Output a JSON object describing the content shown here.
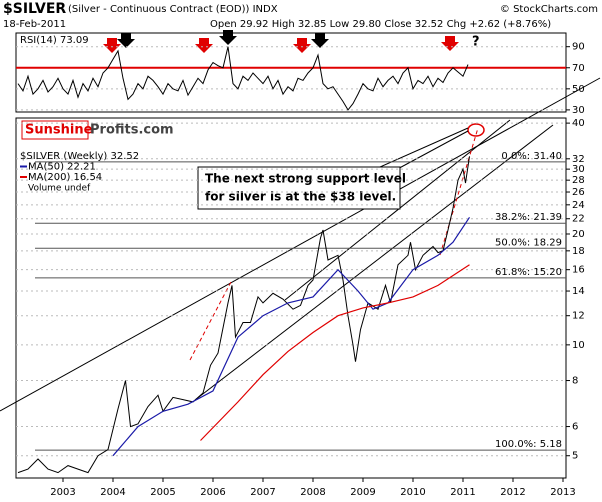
{
  "chart_data": [
    {
      "type": "line",
      "title": "RSI(14) 73.09",
      "ylim": [
        28,
        103
      ],
      "yticks": [
        90,
        70,
        50,
        30
      ],
      "reference_line": 70,
      "reference_color": "#e00000",
      "xlim": [
        2002.06,
        2013.06
      ],
      "series": [
        {
          "name": "RSI(14)",
          "color": "#000000",
          "x": [
            2002.1,
            2002.2,
            2002.3,
            2002.4,
            2002.5,
            2002.6,
            2002.7,
            2002.8,
            2002.9,
            2003.0,
            2003.1,
            2003.2,
            2003.3,
            2003.4,
            2003.5,
            2003.6,
            2003.7,
            2003.8,
            2003.9,
            2004.0,
            2004.1,
            2004.2,
            2004.3,
            2004.4,
            2004.5,
            2004.6,
            2004.7,
            2004.8,
            2004.9,
            2005.0,
            2005.1,
            2005.2,
            2005.3,
            2005.4,
            2005.5,
            2005.6,
            2005.7,
            2005.8,
            2005.9,
            2006.0,
            2006.1,
            2006.2,
            2006.3,
            2006.4,
            2006.5,
            2006.6,
            2006.7,
            2006.8,
            2006.9,
            2007.0,
            2007.1,
            2007.2,
            2007.3,
            2007.4,
            2007.5,
            2007.6,
            2007.7,
            2007.8,
            2007.9,
            2008.0,
            2008.1,
            2008.2,
            2008.3,
            2008.4,
            2008.5,
            2008.6,
            2008.7,
            2008.8,
            2008.9,
            2009.0,
            2009.1,
            2009.2,
            2009.3,
            2009.4,
            2009.5,
            2009.6,
            2009.7,
            2009.8,
            2009.9,
            2010.0,
            2010.1,
            2010.2,
            2010.3,
            2010.4,
            2010.5,
            2010.6,
            2010.7,
            2010.8,
            2010.9,
            2011.0,
            2011.1
          ],
          "values": [
            55,
            48,
            62,
            45,
            50,
            58,
            47,
            52,
            60,
            50,
            45,
            58,
            42,
            55,
            48,
            60,
            52,
            65,
            70,
            78,
            86,
            60,
            40,
            45,
            55,
            50,
            62,
            58,
            52,
            45,
            55,
            50,
            48,
            58,
            44,
            52,
            60,
            55,
            68,
            75,
            72,
            70,
            90,
            55,
            50,
            62,
            58,
            65,
            60,
            55,
            62,
            50,
            58,
            45,
            52,
            48,
            60,
            58,
            65,
            70,
            82,
            55,
            50,
            52,
            45,
            38,
            30,
            36,
            45,
            55,
            50,
            48,
            60,
            52,
            58,
            62,
            55,
            65,
            70,
            50,
            58,
            55,
            62,
            52,
            60,
            56,
            65,
            70,
            66,
            62,
            73
          ]
        }
      ],
      "annotation": "?"
    },
    {
      "type": "line",
      "log_scale": true,
      "title": "$SILVER",
      "subtitle": "(Silver - Continuous Contract (EOD)) INDX",
      "date": "18-Feb-2011",
      "quote": "Open 29.92 High 32.85 Low 29.80 Close 32.52 Chg +2.62 (+8.76%)",
      "source": "© StockCharts.com",
      "logo": [
        "Sunshine",
        "Profits.com"
      ],
      "callout": [
        "The next strong support level",
        "for silver is at the $38 level."
      ],
      "volume_label": "Volume undef",
      "xlim": [
        2002.06,
        2013.06
      ],
      "xticks": [
        2003,
        2004,
        2005,
        2006,
        2007,
        2008,
        2009,
        2010,
        2011,
        2012,
        2013
      ],
      "ylim": [
        4.35,
        41.3
      ],
      "yticks": [
        40,
        32,
        30,
        28,
        26,
        24,
        22,
        20,
        18,
        16,
        14,
        12,
        10,
        8,
        6,
        5
      ],
      "levels": [
        {
          "value": 31.4,
          "label": "0.0%: 31.40"
        },
        {
          "value": 21.39,
          "label": "38.2%: 21.39"
        },
        {
          "value": 18.29,
          "label": "50.0%: 18.29"
        },
        {
          "value": 15.2,
          "label": "61.8%: 15.20"
        },
        {
          "value": 5.18,
          "label": "100.0%: 5.18"
        }
      ],
      "series": [
        {
          "name": "$SILVER (Weekly) 32.52",
          "color": "#000000",
          "x": [
            2002.1,
            2002.3,
            2002.5,
            2002.7,
            2002.9,
            2003.1,
            2003.3,
            2003.5,
            2003.7,
            2003.9,
            2004.0,
            2004.1,
            2004.25,
            2004.35,
            2004.5,
            2004.7,
            2004.9,
            2005.0,
            2005.2,
            2005.4,
            2005.6,
            2005.8,
            2005.95,
            2006.1,
            2006.3,
            2006.38,
            2006.45,
            2006.6,
            2006.75,
            2006.9,
            2007.0,
            2007.2,
            2007.4,
            2007.6,
            2007.75,
            2007.9,
            2008.0,
            2008.15,
            2008.2,
            2008.3,
            2008.5,
            2008.6,
            2008.7,
            2008.8,
            2008.85,
            2008.95,
            2009.1,
            2009.3,
            2009.45,
            2009.55,
            2009.7,
            2009.9,
            2009.95,
            2010.05,
            2010.2,
            2010.4,
            2010.5,
            2010.6,
            2010.7,
            2010.8,
            2010.9,
            2011.0,
            2011.05,
            2011.13
          ],
          "values": [
            4.5,
            4.6,
            4.9,
            4.6,
            4.5,
            4.7,
            4.6,
            4.5,
            5.0,
            5.2,
            5.9,
            6.7,
            8.0,
            6.0,
            6.1,
            6.8,
            7.3,
            6.6,
            7.2,
            7.1,
            7.0,
            7.4,
            8.8,
            9.5,
            13.0,
            14.5,
            10.5,
            11.5,
            11.5,
            13.5,
            13.0,
            13.8,
            13.3,
            12.5,
            12.8,
            14.5,
            15.0,
            19.5,
            20.5,
            17.0,
            17.5,
            15.0,
            12.0,
            10.0,
            9.0,
            11.0,
            13.0,
            12.5,
            14.5,
            13.0,
            16.5,
            17.5,
            19.0,
            16.0,
            17.5,
            18.5,
            17.8,
            18.0,
            20.5,
            23.5,
            28.0,
            30.0,
            27.5,
            32.5
          ]
        },
        {
          "name": "MA(50) 22.21",
          "color": "#1a1aa8",
          "x": [
            2004.0,
            2004.5,
            2005.0,
            2005.5,
            2006.0,
            2006.5,
            2007.0,
            2007.5,
            2008.0,
            2008.5,
            2008.9,
            2009.2,
            2009.5,
            2010.0,
            2010.5,
            2010.8,
            2011.13
          ],
          "values": [
            5.0,
            6.0,
            6.6,
            6.9,
            7.5,
            10.5,
            12.0,
            13.0,
            13.5,
            16.0,
            14.0,
            12.5,
            13.0,
            16.0,
            17.5,
            19.0,
            22.2
          ]
        },
        {
          "name": "MA(200) 16.54",
          "color": "#e00000",
          "x": [
            2005.75,
            2006.5,
            2007.0,
            2007.5,
            2008.0,
            2008.5,
            2009.0,
            2009.5,
            2010.0,
            2010.5,
            2011.13
          ],
          "values": [
            5.5,
            7.0,
            8.3,
            9.6,
            10.8,
            12.0,
            12.6,
            13.0,
            13.5,
            14.5,
            16.5
          ]
        }
      ]
    }
  ]
}
